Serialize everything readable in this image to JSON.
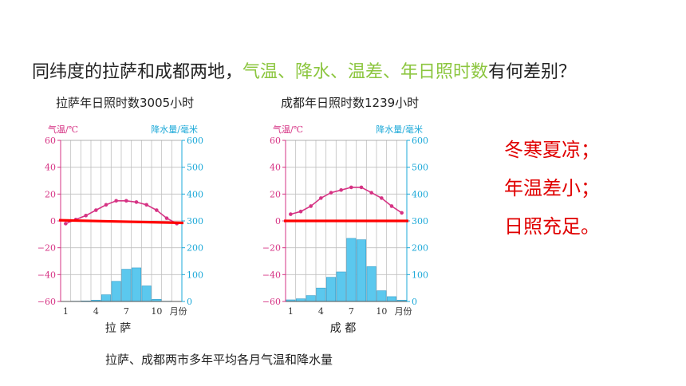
{
  "question": {
    "prefix": "同纬度的拉萨和成都两地，",
    "highlight": "气温、降水、温差、年日照时数",
    "suffix": "有何差别？"
  },
  "answer_lines": [
    "冬寒夏凉；",
    "年温差小；",
    "日照充足。"
  ],
  "footer_caption": "拉萨、成都两市多年平均各月气温和降水量",
  "colors": {
    "temperature": "#d63384",
    "precipitation": "#5bc8ee",
    "precip_axis": "#1ba8d8",
    "annotation_line": "#ff0000",
    "highlight": "#8cc63f",
    "answer": "#e00000"
  },
  "chart_data": [
    {
      "type": "bar+line",
      "caption": "拉萨年日照时数3005小时",
      "city_label": "拉  萨",
      "left_axis_label": "气温/℃",
      "right_axis_label": "降水量/毫米",
      "x_tick_labels": [
        "1",
        "4",
        "7",
        "10"
      ],
      "x_unit_label": "月份",
      "months": [
        1,
        2,
        3,
        4,
        5,
        6,
        7,
        8,
        9,
        10,
        11,
        12
      ],
      "left_ticks": [
        "60",
        "40",
        "20",
        "0",
        "−20",
        "−40",
        "−60"
      ],
      "right_ticks": [
        "600",
        "500",
        "400",
        "300",
        "200",
        "100",
        "0"
      ],
      "temp_ylim": [
        -60,
        60
      ],
      "precip_ylim": [
        0,
        600
      ],
      "temperature_c": [
        -2,
        1,
        4,
        8,
        12,
        15,
        15,
        14,
        12,
        8,
        2,
        -2
      ],
      "precipitation_mm": [
        0,
        1,
        2,
        5,
        25,
        75,
        120,
        125,
        58,
        8,
        1,
        0
      ],
      "annotation_line": {
        "start_temp": 0.5,
        "end_temp": -1.5
      }
    },
    {
      "type": "bar+line",
      "caption": "成都年日照时数1239小时",
      "city_label": "成  都",
      "left_axis_label": "气温/℃",
      "right_axis_label": "降水量/毫米",
      "x_tick_labels": [
        "1",
        "4",
        "7",
        "10"
      ],
      "x_unit_label": "月份",
      "months": [
        1,
        2,
        3,
        4,
        5,
        6,
        7,
        8,
        9,
        10,
        11,
        12
      ],
      "left_ticks": [
        "60",
        "40",
        "20",
        "0",
        "−20",
        "−40",
        "−60"
      ],
      "right_ticks": [
        "600",
        "500",
        "400",
        "300",
        "200",
        "100",
        "0"
      ],
      "temp_ylim": [
        -60,
        60
      ],
      "precip_ylim": [
        0,
        600
      ],
      "temperature_c": [
        5,
        7,
        11,
        17,
        21,
        23,
        25,
        25,
        21,
        17,
        11,
        6
      ],
      "precipitation_mm": [
        6,
        10,
        22,
        50,
        90,
        110,
        235,
        230,
        130,
        40,
        18,
        5
      ],
      "annotation_line": {
        "start_temp": 0,
        "end_temp": 0
      }
    }
  ]
}
